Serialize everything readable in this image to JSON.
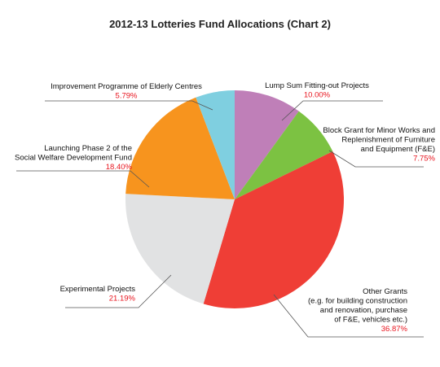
{
  "chart_data": {
    "type": "pie",
    "title": "2012-13 Lotteries Fund Allocations (Chart 2)",
    "start_angle": "12 o'clock, clockwise",
    "slices": [
      {
        "label": [
          "Lump Sum Fitting-out Projects"
        ],
        "value": 10.0,
        "value_label": "10.00%",
        "color": "#bf7fb8"
      },
      {
        "label": [
          "Block Grant for Minor Works and",
          "Replenishment of Furniture",
          "and Equipment (F&E)"
        ],
        "value": 7.75,
        "value_label": "7.75%",
        "color": "#7cc242"
      },
      {
        "label": [
          "Other Grants",
          "(e.g. for building construction",
          "and renovation, purchase",
          "of F&E, vehicles etc.)"
        ],
        "value": 36.87,
        "value_label": "36.87%",
        "color": "#ef3e36"
      },
      {
        "label": [
          "Experimental Projects"
        ],
        "value": 21.19,
        "value_label": "21.19%",
        "color": "#e1e2e3"
      },
      {
        "label": [
          "Launching Phase 2 of the",
          "Social Welfare Development Fund"
        ],
        "value": 18.4,
        "value_label": "18.40%",
        "color": "#f7941e"
      },
      {
        "label": [
          "Improvement Programme of Elderly Centres"
        ],
        "value": 5.79,
        "value_label": "5.79%",
        "color": "#7fcfe0"
      }
    ]
  }
}
